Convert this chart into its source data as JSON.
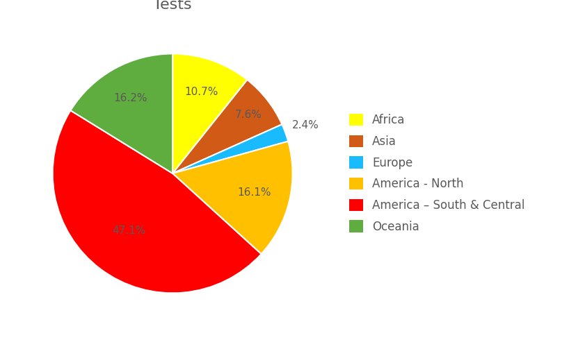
{
  "title": "Tests",
  "labels": [
    "Africa",
    "Asia",
    "Europe",
    "America - North",
    "America – South & Central",
    "Oceania"
  ],
  "values": [
    10.7,
    7.6,
    2.4,
    16.1,
    47.1,
    16.2
  ],
  "colors": [
    "#FFFF00",
    "#D05A16",
    "#1ABAFF",
    "#FFC000",
    "#FF0000",
    "#5FAD3E"
  ],
  "legend_labels": [
    "Africa",
    "Asia",
    "Europe",
    "America - North",
    "America – South & Central",
    "Oceania"
  ],
  "pct_labels": [
    "10.7%",
    "7.6%",
    "2.4%",
    "16.1%",
    "47.1%",
    "16.2%"
  ],
  "title_fontsize": 16,
  "label_fontsize": 11,
  "legend_fontsize": 12,
  "startangle": 90,
  "background_color": "#FFFFFF",
  "label_color": "#595959",
  "title_color": "#595959",
  "label_radii": [
    0.72,
    0.8,
    1.18,
    0.7,
    0.6,
    0.72
  ]
}
